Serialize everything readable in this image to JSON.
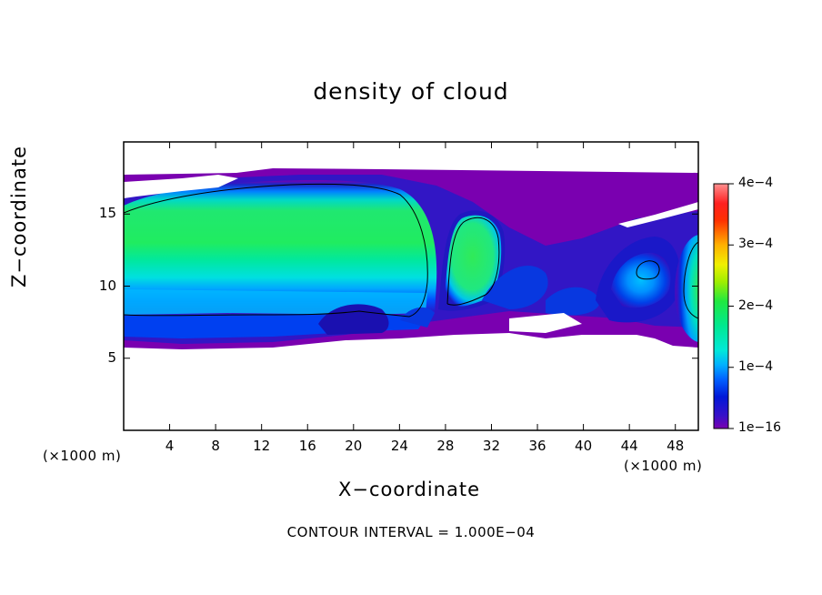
{
  "chart_data": {
    "type": "heatmap",
    "title": "density of cloud",
    "xlabel": "X−coordinate",
    "ylabel": "Z−coordinate",
    "x_unit_left": "(×1000 m)",
    "x_unit_right": "(×1000 m)",
    "footer": "CONTOUR INTERVAL = 1.000E−04",
    "xlim": [
      0,
      50
    ],
    "ylim": [
      0,
      20
    ],
    "x_ticks": [
      4,
      8,
      12,
      16,
      20,
      24,
      28,
      32,
      36,
      40,
      44,
      48
    ],
    "x_tick_labels": [
      "4",
      "8",
      "12",
      "16",
      "20",
      "24",
      "28",
      "32",
      "36",
      "40",
      "44",
      "48"
    ],
    "y_ticks": [
      5,
      10,
      15
    ],
    "y_tick_labels": [
      "5",
      "10",
      "15"
    ],
    "colorbar": {
      "range": [
        0,
        0.0004
      ],
      "tick_values": [
        0.0004,
        0.0003,
        0.0002,
        0.0001,
        0
      ],
      "tick_labels": [
        "4e−4",
        "3e−4",
        "2e−4",
        "1e−4",
        "1e−16"
      ]
    },
    "regions": [
      {
        "name": "main anvil cloud",
        "x_range": [
          0,
          26
        ],
        "z_range": [
          6,
          17.5
        ],
        "peak_value": 0.00021
      },
      {
        "name": "tower at x=30",
        "x_range": [
          27,
          33
        ],
        "z_range": [
          7,
          15.5
        ],
        "peak_value": 0.0002
      },
      {
        "name": "cell at x=45",
        "x_range": [
          42,
          48
        ],
        "z_range": [
          8,
          14
        ],
        "peak_value": 0.00016
      },
      {
        "name": "edge cell at x=50",
        "x_range": [
          47,
          50
        ],
        "z_range": [
          6,
          14
        ],
        "peak_value": 0.0002
      }
    ],
    "grid": false
  }
}
